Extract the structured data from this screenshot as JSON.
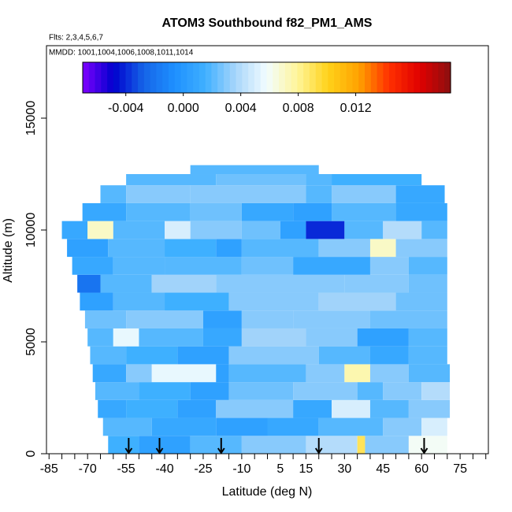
{
  "chart_data": {
    "type": "heatmap",
    "title": "ATOM3 Southbound f82_PM1_AMS",
    "subtitle": "Flts: 2,3,4,5,6,7",
    "annotation": "MMDD: 1001,1004,1006,1008,1011,1014",
    "x_label": "Latitude (deg N)",
    "y_label": "Altitude (m)",
    "xlim": [
      -86,
      86
    ],
    "ylim": [
      0,
      18240
    ],
    "xticks": [
      -85,
      -70,
      -55,
      -40,
      -25,
      -10,
      5,
      15,
      30,
      45,
      60,
      75
    ],
    "xminor_ticks": [
      -80,
      -75,
      -65,
      -60,
      -50,
      -45,
      -35,
      -30,
      -20,
      -15,
      -5,
      0,
      10,
      20,
      25,
      35,
      40,
      50,
      55,
      65,
      70,
      80,
      85
    ],
    "yticks": [
      0,
      5000,
      10000,
      15000
    ],
    "clim": [
      -0.007,
      0.0186
    ],
    "cticks": [
      {
        "value": -0.004,
        "label": "-0.004"
      },
      {
        "value": 0.0,
        "label": "0.000"
      },
      {
        "value": 0.004,
        "label": "0.004"
      },
      {
        "value": 0.008,
        "label": "0.008"
      },
      {
        "value": 0.012,
        "label": "0.012"
      }
    ],
    "colorscale": [
      "#7f00ff",
      "#0000cd",
      "#1565e8",
      "#1e90ff",
      "#3fb0ff",
      "#a9d6fa",
      "#f2fdff",
      "#fff59a",
      "#ffd21a",
      "#ffa200",
      "#ff3000",
      "#e00000",
      "#8b1010"
    ],
    "flight_markers": [
      -54,
      -42,
      -18,
      20,
      61
    ],
    "rows": [
      {
        "alt": [
          0,
          800
        ],
        "lat_edges": [
          -62,
          -50,
          -30,
          -10,
          15,
          35,
          38,
          42,
          55,
          70
        ],
        "values": [
          0.0015,
          0.0005,
          0.002,
          0.003,
          0.004,
          0.009,
          0.003,
          0.003,
          0.006
        ]
      },
      {
        "alt": [
          800,
          1600
        ],
        "lat_edges": [
          -64,
          -45,
          -20,
          0,
          20,
          45,
          60,
          70
        ],
        "values": [
          0.002,
          0.001,
          0.0005,
          0.001,
          0.002,
          0.003,
          0.005
        ]
      },
      {
        "alt": [
          1600,
          2400
        ],
        "lat_edges": [
          -66,
          -55,
          -35,
          -20,
          10,
          25,
          40,
          55,
          71
        ],
        "values": [
          0.001,
          0.0015,
          0.0005,
          0.003,
          0.001,
          0.005,
          0.002,
          0.003
        ]
      },
      {
        "alt": [
          2400,
          3200
        ],
        "lat_edges": [
          -67,
          -50,
          -30,
          -15,
          10,
          35,
          45,
          60,
          71
        ],
        "values": [
          0.002,
          0.0015,
          0.0005,
          0.0025,
          0.003,
          0.002,
          0.003,
          0.004
        ]
      },
      {
        "alt": [
          3200,
          4000
        ],
        "lat_edges": [
          -68,
          -55,
          -45,
          -20,
          -15,
          15,
          30,
          40,
          55,
          71
        ],
        "values": [
          0.001,
          0.003,
          0.0055,
          0.0005,
          0.002,
          0.003,
          0.0075,
          0.003,
          0.002
        ]
      },
      {
        "alt": [
          4000,
          4800
        ],
        "lat_edges": [
          -69,
          -55,
          -35,
          -15,
          20,
          40,
          55,
          70
        ],
        "values": [
          0.002,
          0.0015,
          0.0005,
          0.003,
          0.002,
          0.001,
          0.002
        ]
      },
      {
        "alt": [
          4800,
          5600
        ],
        "lat_edges": [
          -70,
          -60,
          -50,
          -25,
          -10,
          15,
          35,
          55,
          70
        ],
        "values": [
          0.002,
          0.0055,
          0.002,
          0.001,
          0.0035,
          0.003,
          0.0005,
          0.002
        ]
      },
      {
        "alt": [
          5600,
          6400
        ],
        "lat_edges": [
          -71,
          -55,
          -25,
          -10,
          10,
          40,
          70
        ],
        "values": [
          0.0025,
          0.003,
          0.0005,
          0.003,
          0.003,
          0.0025
        ]
      },
      {
        "alt": [
          6400,
          7200
        ],
        "lat_edges": [
          -73,
          -60,
          -40,
          -15,
          20,
          50,
          70
        ],
        "values": [
          0.0005,
          0.002,
          0.0015,
          0.003,
          0.0035,
          0.0025
        ]
      },
      {
        "alt": [
          7200,
          8000
        ],
        "lat_edges": [
          -74,
          -65,
          -45,
          -20,
          30,
          55,
          70
        ],
        "values": [
          -0.002,
          0.002,
          0.0035,
          0.003,
          0.003,
          0.0025
        ]
      },
      {
        "alt": [
          8000,
          8800
        ],
        "lat_edges": [
          -76,
          -60,
          -40,
          -10,
          10,
          40,
          55,
          70
        ],
        "values": [
          0.001,
          0.002,
          0.002,
          0.0025,
          0.001,
          0.003,
          0.002
        ]
      },
      {
        "alt": [
          8800,
          9600
        ],
        "lat_edges": [
          -78,
          -62,
          -40,
          -20,
          -10,
          20,
          40,
          50,
          70
        ],
        "values": [
          0.0005,
          0.002,
          0.0015,
          0.0005,
          0.002,
          0.003,
          0.007,
          0.003
        ]
      },
      {
        "alt": [
          9600,
          10400
        ],
        "lat_edges": [
          -80,
          -70,
          -60,
          -40,
          -30,
          -10,
          5,
          15,
          30,
          45,
          60,
          70
        ],
        "values": [
          0.001,
          0.007,
          0.002,
          0.005,
          0.003,
          0.0025,
          0.0005,
          -0.004,
          0.002,
          0.004,
          0.002
        ]
      },
      {
        "alt": [
          10400,
          11200
        ],
        "lat_edges": [
          -72,
          -55,
          -30,
          -10,
          10,
          25,
          50,
          70
        ],
        "values": [
          0.001,
          0.002,
          0.0025,
          0.001,
          0.0005,
          0.002,
          0.001
        ]
      },
      {
        "alt": [
          11200,
          12000
        ],
        "lat_edges": [
          -65,
          -55,
          -30,
          15,
          25,
          50,
          69
        ],
        "values": [
          0.002,
          0.003,
          0.003,
          0.002,
          0.003,
          0.001
        ]
      },
      {
        "alt": [
          12000,
          12500
        ],
        "lat_edges": [
          -55,
          -20,
          15,
          25,
          60
        ],
        "values": [
          0.002,
          0.0025,
          0.002,
          0.0015
        ]
      },
      {
        "alt": [
          12500,
          12900
        ],
        "lat_edges": [
          -30,
          20
        ],
        "values": [
          0.002
        ]
      }
    ]
  }
}
